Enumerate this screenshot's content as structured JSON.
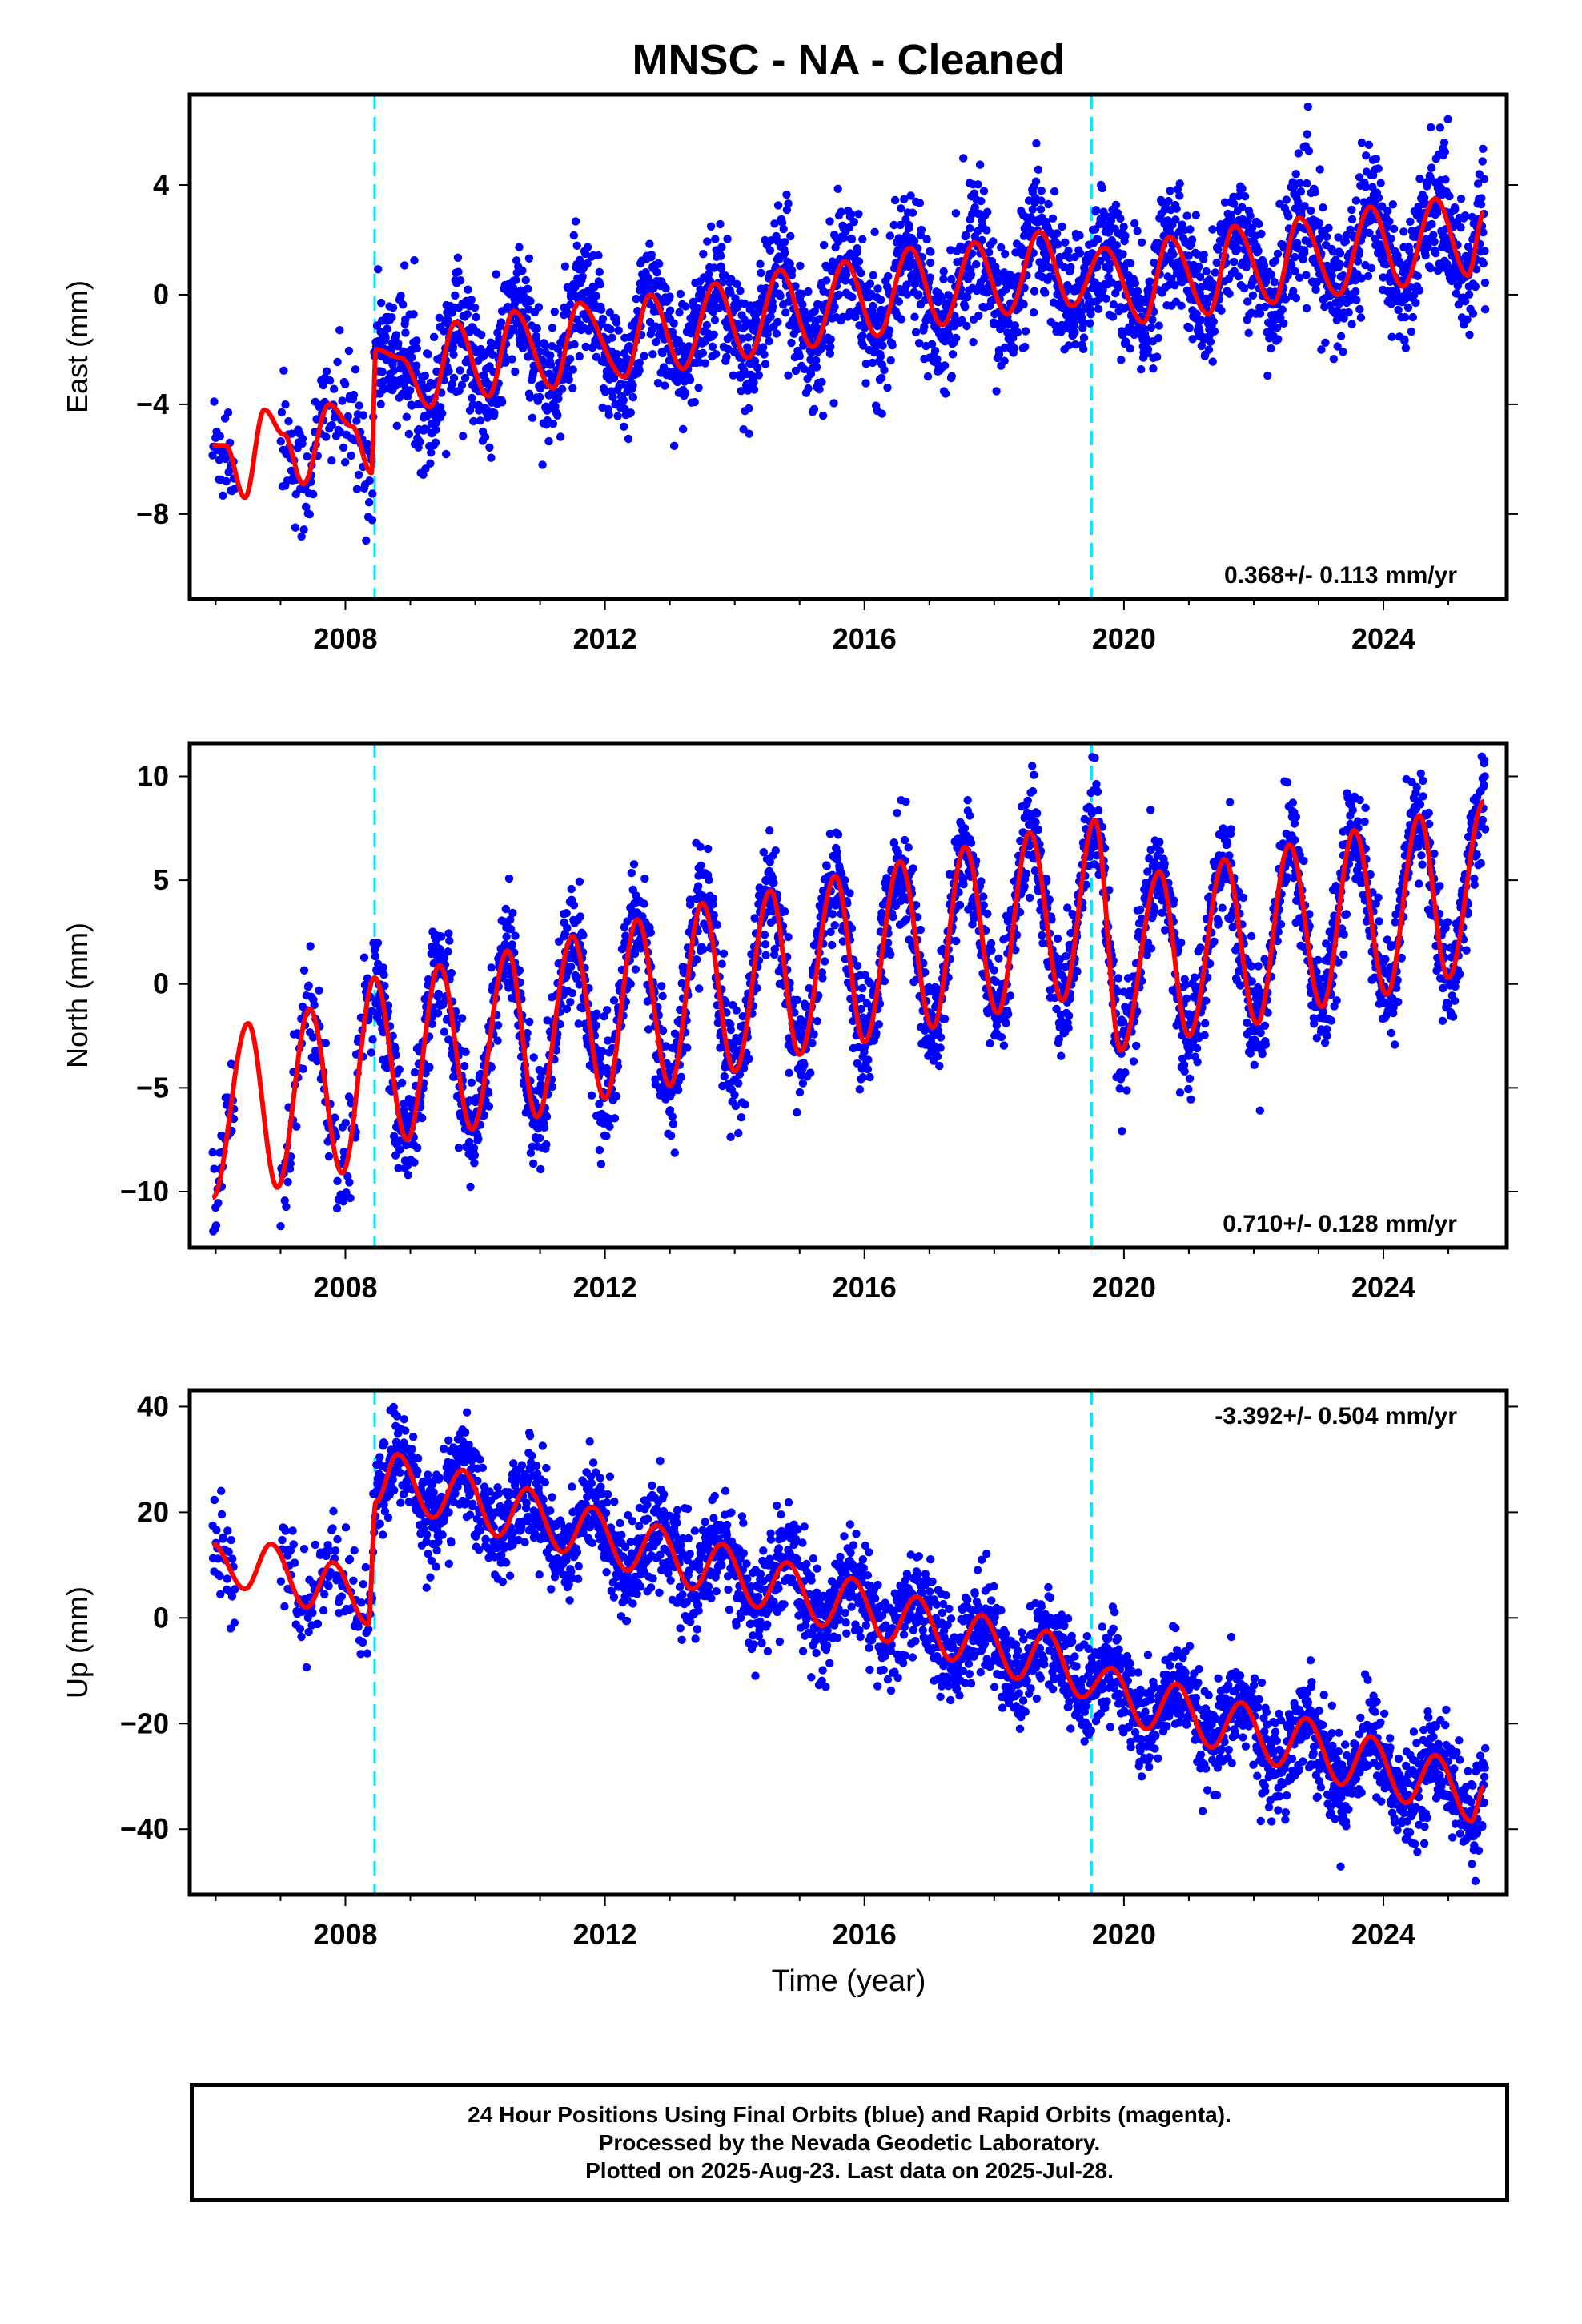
{
  "title": "MNSC  - NA - Cleaned",
  "colors": {
    "final_orbits": "#0000ff",
    "model_fit": "#ff0000",
    "offset_lines": "#00e5ff"
  },
  "chart_data": [
    {
      "type": "scatter",
      "component": "East",
      "title": "MNSC  - NA - Cleaned",
      "xlabel": "",
      "ylabel": "East (mm)",
      "xlim": [
        2005.6,
        2025.9
      ],
      "ylim": [
        -11.1,
        7.3
      ],
      "x_ticks": [
        2008,
        2012,
        2016,
        2020,
        2024
      ],
      "y_ticks": [
        -8,
        -4,
        0,
        4
      ],
      "grid": false,
      "offset_lines_x": [
        2008.45,
        2019.5
      ],
      "rate_label": "0.368+/- 0.113 mm/yr",
      "rate_label_position": "bottom-right",
      "series": [
        {
          "name": "Final Orbits (blue)",
          "marker": "dot",
          "segments": [
            [
              2005.95,
              2008.47
            ],
            [
              2008.47,
              2025.57
            ]
          ],
          "offsets": [
            2.6,
            -6.4
          ],
          "trend": 0.368,
          "annual_amplitude": 1.35,
          "annual_phase": 0.35,
          "noise": 1.15,
          "anchor_points": [
            [
              2006.0,
              -5.6
            ],
            [
              2007.0,
              -6.8
            ],
            [
              2008.4,
              -6.6
            ],
            [
              2008.6,
              -1.5
            ],
            [
              2012.0,
              -1.2
            ],
            [
              2016.0,
              0.6
            ],
            [
              2018.7,
              2.3
            ],
            [
              2020.0,
              1.0
            ],
            [
              2024.0,
              3.0
            ],
            [
              2025.55,
              2.9
            ]
          ]
        },
        {
          "name": "Model fit",
          "style": "line",
          "samples": [
            [
              2005.95,
              -5.5
            ],
            [
              2006.15,
              -5.5
            ],
            [
              2006.45,
              -7.4
            ],
            [
              2006.75,
              -4.2
            ],
            [
              2007.05,
              -5.1
            ],
            [
              2007.35,
              -6.9
            ],
            [
              2007.75,
              -4.0
            ],
            [
              2008.1,
              -4.8
            ],
            [
              2008.4,
              -6.5
            ],
            [
              2008.47,
              -2.0
            ],
            [
              2008.85,
              -2.3
            ],
            [
              2009.3,
              -4.1
            ],
            [
              2009.7,
              -1.0
            ],
            [
              2010.2,
              -3.7
            ],
            [
              2010.6,
              -0.6
            ],
            [
              2011.2,
              -3.4
            ],
            [
              2011.6,
              -0.3
            ],
            [
              2012.3,
              -3.0
            ],
            [
              2012.7,
              0.0
            ],
            [
              2013.2,
              -2.7
            ],
            [
              2013.7,
              0.4
            ],
            [
              2014.2,
              -2.3
            ],
            [
              2014.7,
              0.9
            ],
            [
              2015.2,
              -1.9
            ],
            [
              2015.7,
              1.2
            ],
            [
              2016.2,
              -1.5
            ],
            [
              2016.7,
              1.7
            ],
            [
              2017.2,
              -1.1
            ],
            [
              2017.7,
              1.9
            ],
            [
              2018.2,
              -0.7
            ],
            [
              2018.7,
              2.3
            ],
            [
              2019.2,
              -0.4
            ],
            [
              2019.7,
              1.7
            ],
            [
              2020.3,
              -1.0
            ],
            [
              2020.7,
              2.1
            ],
            [
              2021.3,
              -0.7
            ],
            [
              2021.7,
              2.5
            ],
            [
              2022.3,
              -0.3
            ],
            [
              2022.7,
              2.8
            ],
            [
              2023.3,
              0.0
            ],
            [
              2023.8,
              3.2
            ],
            [
              2024.3,
              0.3
            ],
            [
              2024.8,
              3.5
            ],
            [
              2025.3,
              0.7
            ],
            [
              2025.55,
              3.0
            ]
          ]
        }
      ]
    },
    {
      "type": "scatter",
      "component": "North",
      "xlabel": "",
      "ylabel": "North (mm)",
      "xlim": [
        2005.6,
        2025.9
      ],
      "ylim": [
        -12.7,
        11.6
      ],
      "x_ticks": [
        2008,
        2012,
        2016,
        2020,
        2024
      ],
      "y_ticks": [
        -10,
        -5,
        0,
        5,
        10
      ],
      "grid": false,
      "offset_lines_x": [
        2008.45,
        2019.5
      ],
      "rate_label": "0.710+/- 0.128 mm/yr",
      "rate_label_position": "bottom-right",
      "series": [
        {
          "name": "Final Orbits (blue)",
          "marker": "dot",
          "segments": [
            [
              2005.95,
              2008.47
            ],
            [
              2008.47,
              2025.57
            ]
          ],
          "offsets": [
            0.0,
            0.0
          ],
          "trend": 0.71,
          "annual_amplitude": 4.2,
          "annual_phase": 0.22,
          "noise": 1.3,
          "anchor_points": [
            [
              2006.0,
              -10.3
            ],
            [
              2007.0,
              -9.8
            ],
            [
              2008.4,
              -0.5
            ],
            [
              2010.0,
              -7.0
            ],
            [
              2012.0,
              -5.0
            ],
            [
              2016.0,
              -3.0
            ],
            [
              2019.9,
              -3.2
            ],
            [
              2024.0,
              -0.5
            ],
            [
              2025.55,
              8.8
            ]
          ]
        },
        {
          "name": "Model fit",
          "style": "line",
          "samples": [
            [
              2005.95,
              -10.3
            ],
            [
              2006.5,
              -1.9
            ],
            [
              2006.95,
              -9.8
            ],
            [
              2007.45,
              -1.2
            ],
            [
              2007.95,
              -9.1
            ],
            [
              2008.45,
              0.3
            ],
            [
              2008.95,
              -7.5
            ],
            [
              2009.45,
              0.9
            ],
            [
              2009.95,
              -7.0
            ],
            [
              2010.5,
              1.6
            ],
            [
              2010.95,
              -6.4
            ],
            [
              2011.5,
              2.3
            ],
            [
              2012.0,
              -5.5
            ],
            [
              2012.5,
              3.1
            ],
            [
              2013.0,
              -4.9
            ],
            [
              2013.5,
              3.9
            ],
            [
              2014.0,
              -4.2
            ],
            [
              2014.55,
              4.5
            ],
            [
              2015.0,
              -3.4
            ],
            [
              2015.55,
              5.2
            ],
            [
              2016.0,
              -2.8
            ],
            [
              2016.55,
              5.9
            ],
            [
              2017.05,
              -2.1
            ],
            [
              2017.55,
              6.6
            ],
            [
              2018.05,
              -1.4
            ],
            [
              2018.55,
              7.3
            ],
            [
              2019.05,
              -0.8
            ],
            [
              2019.55,
              7.9
            ],
            [
              2019.95,
              -3.2
            ],
            [
              2020.55,
              5.4
            ],
            [
              2021.0,
              -2.5
            ],
            [
              2021.55,
              6.0
            ],
            [
              2022.05,
              -1.9
            ],
            [
              2022.55,
              6.7
            ],
            [
              2023.05,
              -1.1
            ],
            [
              2023.55,
              7.4
            ],
            [
              2024.05,
              -0.5
            ],
            [
              2024.55,
              8.1
            ],
            [
              2025.0,
              0.3
            ],
            [
              2025.55,
              8.8
            ]
          ]
        }
      ]
    },
    {
      "type": "scatter",
      "component": "Up",
      "xlabel": "Time (year)",
      "ylabel": "Up (mm)",
      "xlim": [
        2005.6,
        2025.9
      ],
      "ylim": [
        -52.4,
        43.1
      ],
      "x_ticks": [
        2008,
        2012,
        2016,
        2020,
        2024
      ],
      "y_ticks": [
        -40,
        -20,
        0,
        20,
        40
      ],
      "grid": false,
      "offset_lines_x": [
        2008.45,
        2019.5
      ],
      "rate_label": "-3.392+/- 0.504 mm/yr",
      "rate_label_position": "top-right",
      "series": [
        {
          "name": "Final Orbits (blue)",
          "marker": "dot",
          "segments": [
            [
              2005.95,
              2008.47
            ],
            [
              2008.47,
              2025.57
            ]
          ],
          "offsets": [
            18.0,
            43.0
          ],
          "trend": -3.392,
          "annual_amplitude": 4.6,
          "annual_phase": 0.05,
          "noise": 4.6,
          "anchor_points": [
            [
              2006.0,
              13.0
            ],
            [
              2007.5,
              5.0
            ],
            [
              2008.4,
              -1.0
            ],
            [
              2008.7,
              30.0
            ],
            [
              2012.0,
              20.0
            ],
            [
              2016.0,
              5.0
            ],
            [
              2019.5,
              -12.0
            ],
            [
              2022.0,
              -20.0
            ],
            [
              2025.55,
              -35.0
            ]
          ]
        },
        {
          "name": "Model fit",
          "style": "line",
          "samples": [
            [
              2005.95,
              14.0
            ],
            [
              2006.45,
              5.5
            ],
            [
              2006.85,
              14.0
            ],
            [
              2007.4,
              2.0
            ],
            [
              2007.8,
              10.5
            ],
            [
              2008.35,
              -1.2
            ],
            [
              2008.47,
              22.0
            ],
            [
              2008.8,
              31.0
            ],
            [
              2009.35,
              19.0
            ],
            [
              2009.8,
              28.0
            ],
            [
              2010.35,
              15.5
            ],
            [
              2010.8,
              24.5
            ],
            [
              2011.35,
              12.5
            ],
            [
              2011.8,
              21.0
            ],
            [
              2012.35,
              9.0
            ],
            [
              2012.8,
              17.5
            ],
            [
              2013.35,
              5.5
            ],
            [
              2013.8,
              14.0
            ],
            [
              2014.35,
              2.0
            ],
            [
              2014.8,
              10.5
            ],
            [
              2015.35,
              -1.5
            ],
            [
              2015.8,
              7.5
            ],
            [
              2016.35,
              -4.5
            ],
            [
              2016.8,
              4.0
            ],
            [
              2017.35,
              -8.0
            ],
            [
              2017.8,
              0.5
            ],
            [
              2018.35,
              -11.5
            ],
            [
              2018.8,
              -2.5
            ],
            [
              2019.35,
              -15.0
            ],
            [
              2019.8,
              -9.5
            ],
            [
              2020.35,
              -21.0
            ],
            [
              2020.8,
              -12.5
            ],
            [
              2021.35,
              -24.5
            ],
            [
              2021.8,
              -16.0
            ],
            [
              2022.35,
              -28.0
            ],
            [
              2022.8,
              -19.0
            ],
            [
              2023.35,
              -31.5
            ],
            [
              2023.8,
              -22.5
            ],
            [
              2024.35,
              -35.0
            ],
            [
              2024.8,
              -26.0
            ],
            [
              2025.35,
              -38.5
            ],
            [
              2025.55,
              -32.0
            ]
          ]
        }
      ]
    }
  ],
  "caption": {
    "line1": "24 Hour Positions Using Final Orbits (blue) and Rapid Orbits (magenta).",
    "line2": "Processed by the Nevada Geodetic Laboratory.",
    "line3": "Plotted on 2025-Aug-23. Last data on 2025-Jul-28."
  }
}
